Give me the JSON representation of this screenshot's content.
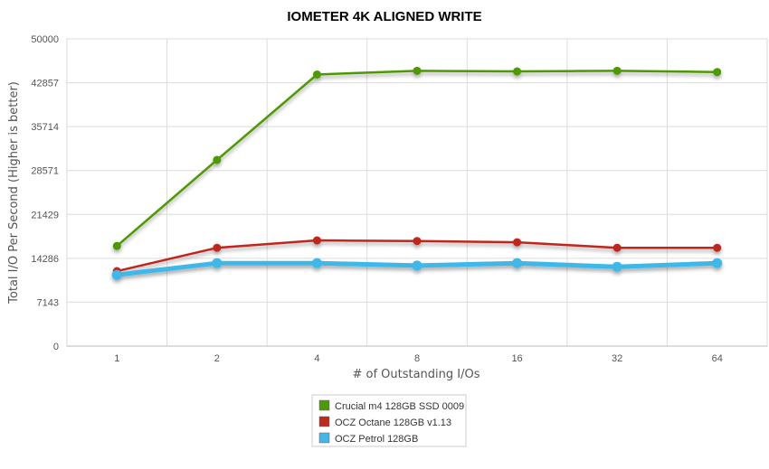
{
  "chart_data": {
    "type": "line",
    "title": "IOMETER 4K ALIGNED WRITE",
    "xlabel": "# of Outstanding I/Os",
    "ylabel": "Total I/O Per Second (Higher is better)",
    "categories": [
      "1",
      "2",
      "4",
      "8",
      "16",
      "32",
      "64"
    ],
    "ylim": [
      0,
      50000
    ],
    "yticks": [
      "0",
      "7143",
      "14286",
      "21429",
      "28571",
      "35714",
      "42857",
      "50000"
    ],
    "grid": true,
    "legend_position": "bottom",
    "series": [
      {
        "name": "Crucial m4 128GB SSD 0009",
        "color": "#4e9a06",
        "values": [
          16300,
          30300,
          44200,
          44800,
          44700,
          44800,
          44600
        ]
      },
      {
        "name": "OCZ Octane 128GB v1.13",
        "color": "#c0281e",
        "values": [
          12200,
          16000,
          17200,
          17100,
          16900,
          16000,
          16000
        ]
      },
      {
        "name": "OCZ Petrol 128GB",
        "color": "#3db8e8",
        "values": [
          11600,
          13500,
          13500,
          13100,
          13500,
          12900,
          13500
        ]
      }
    ]
  }
}
